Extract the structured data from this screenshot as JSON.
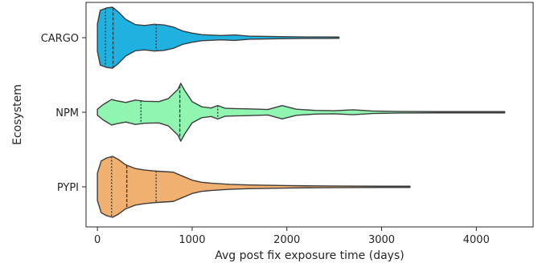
{
  "chart_data": {
    "type": "violin",
    "orientation": "horizontal",
    "title": "",
    "xlabel": "Avg post fix exposure time (days)",
    "ylabel": "Ecosystem",
    "xlim": [
      -120,
      4600
    ],
    "xticks": [
      0,
      1000,
      2000,
      3000,
      4000
    ],
    "grid": false,
    "legend": "none",
    "categories": [
      "CARGO",
      "NPM",
      "PYPI"
    ],
    "series": [
      {
        "category": "CARGO",
        "color": "#1fb2e0",
        "min": 0,
        "max": 2550,
        "quartiles": [
          85,
          165,
          620
        ],
        "density_x": [
          0,
          30,
          100,
          160,
          220,
          300,
          400,
          500,
          600,
          700,
          800,
          900,
          1000,
          1100,
          1300,
          1450,
          1600,
          1800,
          2000,
          2200,
          2400,
          2550
        ],
        "density_w": [
          0.45,
          0.9,
          0.98,
          1.0,
          0.85,
          0.6,
          0.43,
          0.4,
          0.44,
          0.42,
          0.35,
          0.22,
          0.15,
          0.1,
          0.07,
          0.09,
          0.05,
          0.04,
          0.03,
          0.025,
          0.025,
          0.02
        ]
      },
      {
        "category": "NPM",
        "color": "#8ff5b0",
        "min": 0,
        "max": 4300,
        "quartiles": [
          460,
          870,
          1270
        ],
        "density_x": [
          0,
          60,
          150,
          200,
          300,
          400,
          500,
          650,
          750,
          850,
          880,
          920,
          1000,
          1100,
          1200,
          1270,
          1350,
          1450,
          1600,
          1800,
          1950,
          2100,
          2300,
          2500,
          2700,
          2900,
          3200,
          3600,
          4000,
          4300
        ],
        "density_w": [
          0.1,
          0.25,
          0.42,
          0.38,
          0.32,
          0.4,
          0.36,
          0.35,
          0.45,
          0.75,
          0.95,
          0.72,
          0.35,
          0.18,
          0.14,
          0.22,
          0.13,
          0.12,
          0.11,
          0.09,
          0.22,
          0.1,
          0.06,
          0.05,
          0.08,
          0.04,
          0.025,
          0.02,
          0.02,
          0.02
        ]
      },
      {
        "category": "PYPI",
        "color": "#f0b070",
        "min": 0,
        "max": 3300,
        "quartiles": [
          150,
          310,
          620
        ],
        "density_x": [
          0,
          40,
          100,
          160,
          220,
          300,
          400,
          500,
          600,
          700,
          800,
          900,
          1000,
          1100,
          1200,
          1400,
          1600,
          1800,
          2000,
          2300,
          2600,
          3000,
          3300
        ],
        "density_w": [
          0.45,
          0.85,
          0.95,
          1.0,
          0.9,
          0.72,
          0.6,
          0.55,
          0.52,
          0.5,
          0.48,
          0.35,
          0.22,
          0.15,
          0.12,
          0.08,
          0.06,
          0.05,
          0.04,
          0.03,
          0.025,
          0.02,
          0.02
        ]
      }
    ]
  }
}
